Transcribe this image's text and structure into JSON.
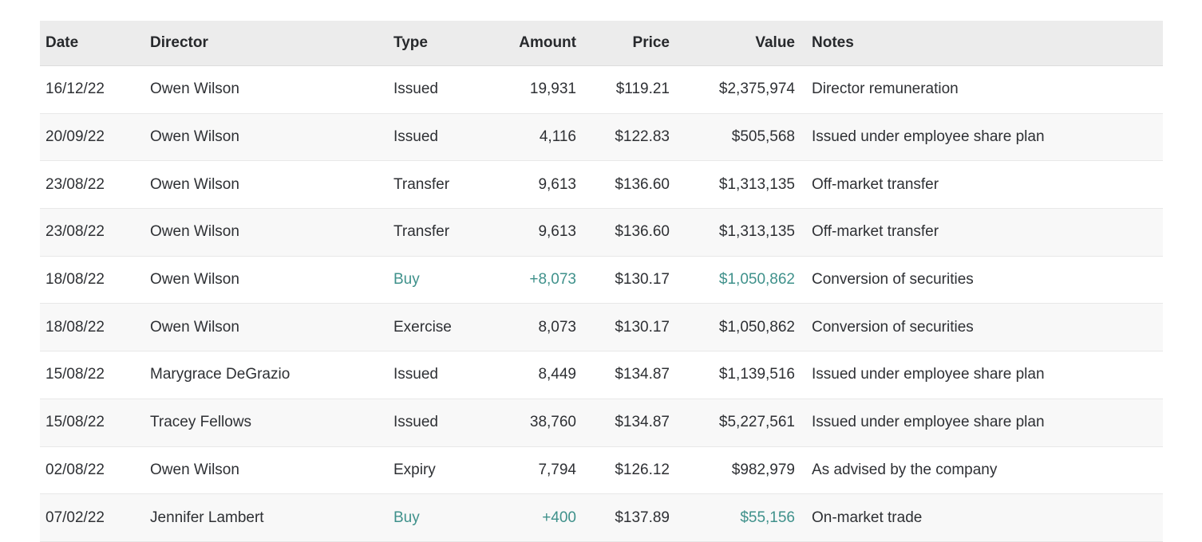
{
  "colors": {
    "teal": "#3f918b",
    "header_bg": "#ececec",
    "alt_row_bg": "#f8f8f8",
    "divider": "#e8e8e8",
    "text": "#2e3034"
  },
  "table": {
    "columns": [
      {
        "key": "date",
        "label": "Date",
        "align": "left"
      },
      {
        "key": "director",
        "label": "Director",
        "align": "left"
      },
      {
        "key": "type",
        "label": "Type",
        "align": "left"
      },
      {
        "key": "amount",
        "label": "Amount",
        "align": "right"
      },
      {
        "key": "price",
        "label": "Price",
        "align": "right"
      },
      {
        "key": "value",
        "label": "Value",
        "align": "right"
      },
      {
        "key": "notes",
        "label": "Notes",
        "align": "left"
      }
    ],
    "rows": [
      {
        "date": "16/12/22",
        "director": "Owen Wilson",
        "type": "Issued",
        "amount": "19,931",
        "price": "$119.21",
        "value": "$2,375,974",
        "notes": "Director remuneration",
        "buy": false
      },
      {
        "date": "20/09/22",
        "director": "Owen Wilson",
        "type": "Issued",
        "amount": "4,116",
        "price": "$122.83",
        "value": "$505,568",
        "notes": "Issued under employee share plan",
        "buy": false
      },
      {
        "date": "23/08/22",
        "director": "Owen Wilson",
        "type": "Transfer",
        "amount": "9,613",
        "price": "$136.60",
        "value": "$1,313,135",
        "notes": "Off-market transfer",
        "buy": false
      },
      {
        "date": "23/08/22",
        "director": "Owen Wilson",
        "type": "Transfer",
        "amount": "9,613",
        "price": "$136.60",
        "value": "$1,313,135",
        "notes": "Off-market transfer",
        "buy": false
      },
      {
        "date": "18/08/22",
        "director": "Owen Wilson",
        "type": "Buy",
        "amount": "+8,073",
        "price": "$130.17",
        "value": "$1,050,862",
        "notes": "Conversion of securities",
        "buy": true
      },
      {
        "date": "18/08/22",
        "director": "Owen Wilson",
        "type": "Exercise",
        "amount": "8,073",
        "price": "$130.17",
        "value": "$1,050,862",
        "notes": "Conversion of securities",
        "buy": false
      },
      {
        "date": "15/08/22",
        "director": "Marygrace DeGrazio",
        "type": "Issued",
        "amount": "8,449",
        "price": "$134.87",
        "value": "$1,139,516",
        "notes": "Issued under employee share plan",
        "buy": false
      },
      {
        "date": "15/08/22",
        "director": "Tracey Fellows",
        "type": "Issued",
        "amount": "38,760",
        "price": "$134.87",
        "value": "$5,227,561",
        "notes": "Issued under employee share plan",
        "buy": false
      },
      {
        "date": "02/08/22",
        "director": "Owen Wilson",
        "type": "Expiry",
        "amount": "7,794",
        "price": "$126.12",
        "value": "$982,979",
        "notes": "As advised by the company",
        "buy": false
      },
      {
        "date": "07/02/22",
        "director": "Jennifer Lambert",
        "type": "Buy",
        "amount": "+400",
        "price": "$137.89",
        "value": "$55,156",
        "notes": "On-market trade",
        "buy": true
      }
    ]
  }
}
